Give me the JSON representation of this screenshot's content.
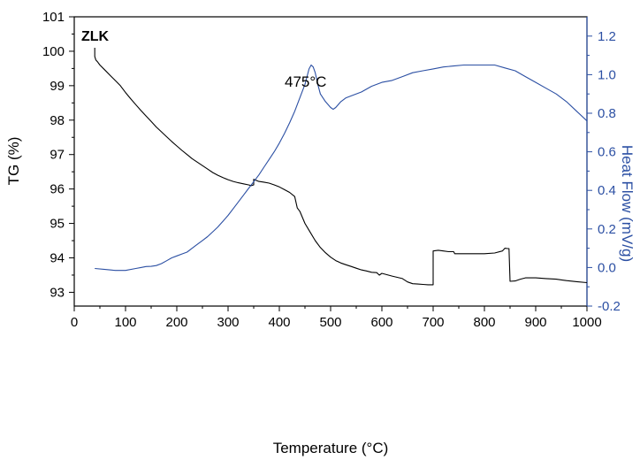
{
  "chart_data": {
    "type": "line",
    "sample_label": "ZLK",
    "annotation": "475°C",
    "xlabel": "Temperature (°C)",
    "ylabel_left": "TG (%)",
    "ylabel_right": "Heat Flow (mV/g)",
    "xlim": [
      0,
      1000
    ],
    "ylim_left": [
      92.6,
      101
    ],
    "ylim_right": [
      -0.2,
      1.3
    ],
    "x_ticks": [
      "0",
      "100",
      "200",
      "300",
      "400",
      "500",
      "600",
      "700",
      "800",
      "900",
      "1000"
    ],
    "y_left_ticks": [
      "93",
      "94",
      "95",
      "96",
      "97",
      "98",
      "99",
      "100",
      "101"
    ],
    "y_right_ticks": [
      "-0.2",
      "0.0",
      "0.2",
      "0.4",
      "0.6",
      "0.8",
      "1.0",
      "1.2"
    ],
    "grid": false,
    "colors": {
      "tg": "#000000",
      "heat_flow": "#2b4fa3",
      "right_axis": "#2b4fa3"
    },
    "series": [
      {
        "axis": "left",
        "x": [
          40,
          40,
          42,
          45,
          50,
          60,
          70,
          80,
          90,
          100,
          110,
          120,
          130,
          140,
          150,
          160,
          170,
          180,
          190,
          200,
          210,
          220,
          230,
          240,
          250,
          260,
          270,
          280,
          290,
          300,
          310,
          320,
          330,
          340,
          345,
          350,
          350,
          360,
          370,
          380,
          390,
          400,
          410,
          420,
          430,
          435,
          440,
          450,
          460,
          470,
          480,
          490,
          500,
          510,
          520,
          530,
          540,
          550,
          560,
          570,
          580,
          590,
          595,
          600,
          620,
          640,
          650,
          660,
          670,
          680,
          690,
          700,
          700,
          710,
          720,
          730,
          740,
          742,
          760,
          780,
          800,
          820,
          835,
          840,
          845,
          848,
          850,
          860,
          870,
          880,
          890,
          900,
          920,
          940,
          960,
          980,
          1000
        ],
        "y": [
          100.1,
          99.85,
          99.75,
          99.7,
          99.6,
          99.45,
          99.3,
          99.15,
          99.0,
          98.8,
          98.62,
          98.45,
          98.28,
          98.12,
          97.96,
          97.8,
          97.66,
          97.52,
          97.38,
          97.25,
          97.12,
          97.0,
          96.88,
          96.78,
          96.68,
          96.58,
          96.48,
          96.4,
          96.33,
          96.27,
          96.22,
          96.18,
          96.15,
          96.12,
          96.1,
          96.12,
          96.28,
          96.22,
          96.2,
          96.17,
          96.12,
          96.06,
          95.98,
          95.9,
          95.78,
          95.45,
          95.35,
          95.0,
          94.75,
          94.5,
          94.3,
          94.15,
          94.02,
          93.92,
          93.85,
          93.8,
          93.75,
          93.7,
          93.65,
          93.62,
          93.58,
          93.57,
          93.5,
          93.55,
          93.47,
          93.4,
          93.3,
          93.25,
          93.24,
          93.23,
          93.22,
          93.22,
          94.2,
          94.22,
          94.2,
          94.18,
          94.18,
          94.12,
          94.12,
          94.12,
          94.12,
          94.14,
          94.2,
          94.28,
          94.27,
          94.27,
          93.32,
          93.33,
          93.38,
          93.42,
          93.42,
          93.42,
          93.4,
          93.38,
          93.34,
          93.31,
          93.28
        ]
      },
      {
        "axis": "right",
        "x": [
          40,
          60,
          80,
          100,
          120,
          130,
          140,
          150,
          160,
          170,
          180,
          190,
          200,
          210,
          220,
          230,
          240,
          250,
          260,
          270,
          280,
          290,
          300,
          310,
          320,
          330,
          340,
          350,
          360,
          370,
          380,
          390,
          400,
          410,
          420,
          430,
          440,
          450,
          455,
          458,
          462,
          466,
          470,
          475,
          480,
          490,
          500,
          505,
          510,
          520,
          530,
          540,
          560,
          580,
          600,
          620,
          640,
          660,
          680,
          700,
          720,
          740,
          760,
          780,
          800,
          820,
          840,
          860,
          880,
          900,
          920,
          940,
          960,
          980,
          1000
        ],
        "y": [
          -0.005,
          -0.01,
          -0.015,
          -0.015,
          -0.005,
          0.0,
          0.005,
          0.006,
          0.01,
          0.02,
          0.035,
          0.05,
          0.06,
          0.07,
          0.08,
          0.1,
          0.12,
          0.14,
          0.16,
          0.185,
          0.21,
          0.24,
          0.27,
          0.305,
          0.34,
          0.375,
          0.41,
          0.445,
          0.48,
          0.52,
          0.56,
          0.6,
          0.645,
          0.695,
          0.75,
          0.81,
          0.88,
          0.95,
          1.0,
          1.03,
          1.05,
          1.04,
          1.01,
          0.95,
          0.9,
          0.86,
          0.83,
          0.82,
          0.83,
          0.86,
          0.88,
          0.89,
          0.91,
          0.94,
          0.96,
          0.97,
          0.99,
          1.01,
          1.02,
          1.03,
          1.04,
          1.045,
          1.05,
          1.05,
          1.05,
          1.05,
          1.035,
          1.02,
          0.99,
          0.96,
          0.93,
          0.9,
          0.86,
          0.81,
          0.76
        ]
      }
    ]
  }
}
